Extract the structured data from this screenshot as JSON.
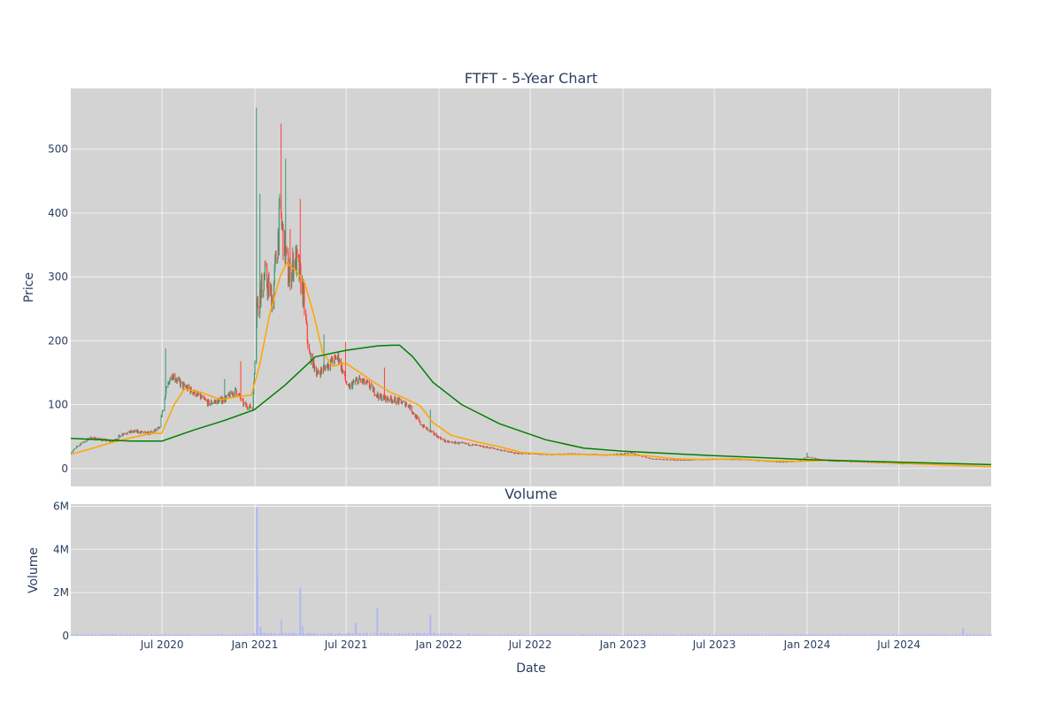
{
  "chart_data": {
    "type": "candlestick",
    "title": "FTFT - 5-Year Chart",
    "subplot_titles": [
      "",
      "Volume"
    ],
    "xlabel": "Date",
    "price_ylabel": "Price",
    "volume_ylabel": "Volume",
    "x_range": [
      "2020-01-02",
      "2024-12-31"
    ],
    "x_ticks": [
      {
        "date": "2020-07-01",
        "label": "Jul 2020"
      },
      {
        "date": "2021-01-01",
        "label": "Jan 2021"
      },
      {
        "date": "2021-07-01",
        "label": "Jul 2021"
      },
      {
        "date": "2022-01-01",
        "label": "Jan 2022"
      },
      {
        "date": "2022-07-01",
        "label": "Jul 2022"
      },
      {
        "date": "2023-01-01",
        "label": "Jan 2023"
      },
      {
        "date": "2023-07-01",
        "label": "Jul 2023"
      },
      {
        "date": "2024-01-01",
        "label": "Jan 2024"
      },
      {
        "date": "2024-07-01",
        "label": "Jul 2024"
      }
    ],
    "price_ylim": [
      -28,
      595
    ],
    "price_ticks": [
      0,
      100,
      200,
      300,
      400,
      500
    ],
    "volume_ylim": [
      0,
      6100000
    ],
    "volume_ticks": [
      {
        "value": 0,
        "label": "0"
      },
      {
        "value": 2000000,
        "label": "2M"
      },
      {
        "value": 4000000,
        "label": "4M"
      },
      {
        "value": 6000000,
        "label": "6M"
      }
    ],
    "grid": true,
    "colors": {
      "plot_bg": "#d3d3d3",
      "grid": "#f2f2f2",
      "up": "#3d9970",
      "down": "#ff4136",
      "ma_short": "#ffa500",
      "ma_long": "#008000",
      "volume": "#b0b8f0",
      "text": "#2a3f5f"
    },
    "price_anchors": [
      [
        "2020-01-02",
        25
      ],
      [
        "2020-01-20",
        38
      ],
      [
        "2020-02-10",
        48
      ],
      [
        "2020-03-05",
        45
      ],
      [
        "2020-03-25",
        42
      ],
      [
        "2020-04-15",
        55
      ],
      [
        "2020-05-10",
        58
      ],
      [
        "2020-06-05",
        55
      ],
      [
        "2020-06-25",
        62
      ],
      [
        "2020-07-10",
        125
      ],
      [
        "2020-07-20",
        148
      ],
      [
        "2020-08-10",
        130
      ],
      [
        "2020-09-05",
        118
      ],
      [
        "2020-10-01",
        102
      ],
      [
        "2020-11-01",
        108
      ],
      [
        "2020-11-25",
        122
      ],
      [
        "2020-12-10",
        100
      ],
      [
        "2020-12-28",
        95
      ],
      [
        "2021-01-05",
        255
      ],
      [
        "2021-01-20",
        300
      ],
      [
        "2021-02-05",
        265
      ],
      [
        "2021-02-20",
        400
      ],
      [
        "2021-03-08",
        300
      ],
      [
        "2021-03-22",
        330
      ],
      [
        "2021-04-05",
        285
      ],
      [
        "2021-04-18",
        180
      ],
      [
        "2021-05-05",
        148
      ],
      [
        "2021-05-25",
        162
      ],
      [
        "2021-06-15",
        175
      ],
      [
        "2021-07-05",
        125
      ],
      [
        "2021-07-25",
        140
      ],
      [
        "2021-08-15",
        130
      ],
      [
        "2021-09-05",
        112
      ],
      [
        "2021-10-01",
        108
      ],
      [
        "2021-11-01",
        100
      ],
      [
        "2021-11-25",
        70
      ],
      [
        "2021-12-20",
        55
      ],
      [
        "2022-01-15",
        42
      ],
      [
        "2022-03-01",
        38
      ],
      [
        "2022-04-15",
        32
      ],
      [
        "2022-06-01",
        24
      ],
      [
        "2022-08-01",
        22
      ],
      [
        "2022-10-01",
        23
      ],
      [
        "2022-12-01",
        21
      ],
      [
        "2023-01-15",
        24
      ],
      [
        "2023-03-01",
        15
      ],
      [
        "2023-05-01",
        13
      ],
      [
        "2023-07-01",
        15
      ],
      [
        "2023-09-01",
        14
      ],
      [
        "2023-11-15",
        10
      ],
      [
        "2023-12-15",
        12
      ],
      [
        "2024-01-01",
        18
      ],
      [
        "2024-02-15",
        12
      ],
      [
        "2024-05-01",
        10
      ],
      [
        "2024-07-01",
        8
      ],
      [
        "2024-10-01",
        6
      ],
      [
        "2024-12-31",
        3
      ]
    ],
    "price_spikes": [
      [
        "2020-07-08",
        188
      ],
      [
        "2020-11-01",
        140
      ],
      [
        "2020-12-05",
        168
      ],
      [
        "2021-01-03",
        565
      ],
      [
        "2021-01-10",
        430
      ],
      [
        "2021-02-22",
        540
      ],
      [
        "2021-03-03",
        485
      ],
      [
        "2021-03-12",
        375
      ],
      [
        "2021-04-01",
        422
      ],
      [
        "2021-05-18",
        210
      ],
      [
        "2021-06-30",
        198
      ],
      [
        "2021-09-15",
        158
      ],
      [
        "2021-12-15",
        92
      ],
      [
        "2024-01-01",
        25
      ]
    ],
    "ma_short": [
      [
        "2020-01-02",
        22
      ],
      [
        "2020-02-15",
        32
      ],
      [
        "2020-03-20",
        40
      ],
      [
        "2020-04-30",
        48
      ],
      [
        "2020-06-10",
        55
      ],
      [
        "2020-06-30",
        55
      ],
      [
        "2020-07-25",
        100
      ],
      [
        "2020-08-15",
        125
      ],
      [
        "2020-09-20",
        118
      ],
      [
        "2020-10-25",
        108
      ],
      [
        "2020-11-25",
        112
      ],
      [
        "2020-12-25",
        115
      ],
      [
        "2021-01-10",
        160
      ],
      [
        "2021-01-30",
        240
      ],
      [
        "2021-02-20",
        300
      ],
      [
        "2021-03-05",
        322
      ],
      [
        "2021-03-25",
        308
      ],
      [
        "2021-04-10",
        290
      ],
      [
        "2021-04-28",
        240
      ],
      [
        "2021-05-15",
        182
      ],
      [
        "2021-06-05",
        160
      ],
      [
        "2021-06-30",
        165
      ],
      [
        "2021-07-25",
        152
      ],
      [
        "2021-08-25",
        135
      ],
      [
        "2021-09-25",
        120
      ],
      [
        "2021-10-25",
        110
      ],
      [
        "2021-11-25",
        98
      ],
      [
        "2021-12-20",
        72
      ],
      [
        "2022-01-25",
        52
      ],
      [
        "2022-03-15",
        42
      ],
      [
        "2022-05-01",
        34
      ],
      [
        "2022-06-15",
        25
      ],
      [
        "2022-08-15",
        22
      ],
      [
        "2022-10-15",
        22
      ],
      [
        "2022-12-15",
        21
      ],
      [
        "2023-02-15",
        20
      ],
      [
        "2023-04-15",
        15
      ],
      [
        "2023-06-15",
        14
      ],
      [
        "2023-08-15",
        15
      ],
      [
        "2023-10-15",
        12
      ],
      [
        "2023-12-15",
        11
      ],
      [
        "2024-02-15",
        13
      ],
      [
        "2024-04-15",
        11
      ],
      [
        "2024-07-15",
        8
      ],
      [
        "2024-10-15",
        5
      ],
      [
        "2024-12-31",
        3
      ]
    ],
    "ma_long": [
      [
        "2020-01-02",
        47
      ],
      [
        "2020-03-01",
        45
      ],
      [
        "2020-05-01",
        43
      ],
      [
        "2020-07-01",
        43
      ],
      [
        "2020-09-01",
        60
      ],
      [
        "2020-11-01",
        75
      ],
      [
        "2020-12-31",
        92
      ],
      [
        "2021-03-01",
        130
      ],
      [
        "2021-05-01",
        175
      ],
      [
        "2021-07-01",
        185
      ],
      [
        "2021-09-01",
        192
      ],
      [
        "2021-10-01",
        193
      ],
      [
        "2021-10-15",
        193
      ],
      [
        "2021-11-10",
        175
      ],
      [
        "2021-12-20",
        135
      ],
      [
        "2022-02-15",
        100
      ],
      [
        "2022-05-01",
        70
      ],
      [
        "2022-08-01",
        45
      ],
      [
        "2022-10-15",
        32
      ],
      [
        "2023-01-01",
        27
      ],
      [
        "2023-07-01",
        20
      ],
      [
        "2024-01-01",
        14
      ],
      [
        "2024-07-01",
        10
      ],
      [
        "2024-12-31",
        6
      ]
    ],
    "volume_spikes": [
      [
        "2021-01-05",
        5950000
      ],
      [
        "2021-01-06",
        2800000
      ],
      [
        "2021-01-12",
        400000
      ],
      [
        "2021-02-22",
        750000
      ],
      [
        "2021-04-01",
        2200000
      ],
      [
        "2021-04-05",
        450000
      ],
      [
        "2021-07-20",
        600000
      ],
      [
        "2021-09-01",
        1300000
      ],
      [
        "2021-12-15",
        950000
      ],
      [
        "2022-03-01",
        120000
      ],
      [
        "2024-11-05",
        350000
      ]
    ]
  }
}
